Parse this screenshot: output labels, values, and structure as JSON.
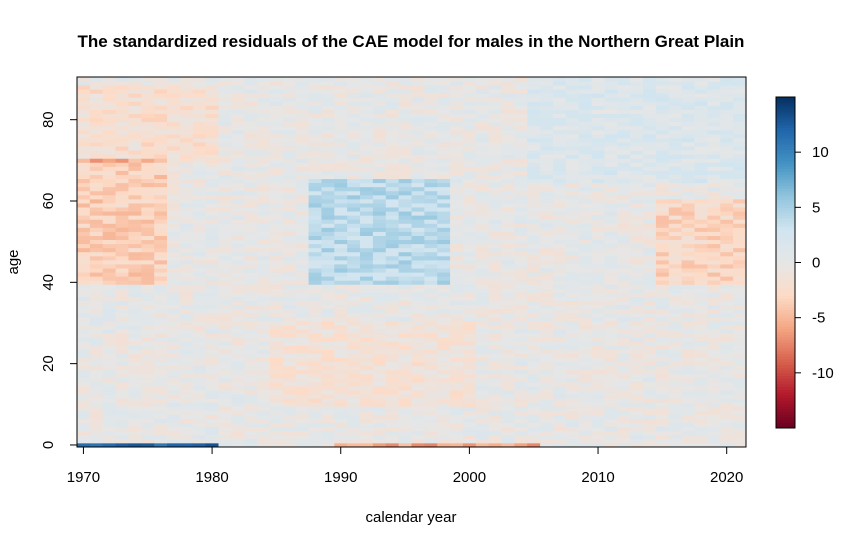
{
  "chart_data": {
    "type": "heatmap",
    "title": "The standardized residuals of the CAE model for males in the Northern Great Plain",
    "xlabel": "calendar year",
    "ylabel": "age",
    "xlim": [
      1969.5,
      2021.5
    ],
    "ylim": [
      -0.5,
      90.5
    ],
    "x_range": [
      1970,
      2021
    ],
    "y_range": [
      0,
      90
    ],
    "x_ticks": [
      1970,
      1980,
      1990,
      2000,
      2010,
      2020
    ],
    "y_ticks": [
      0,
      20,
      40,
      60,
      80
    ],
    "colorbar": {
      "range": [
        -15,
        15
      ],
      "ticks": [
        10,
        5,
        0,
        -5,
        -10
      ],
      "palette": [
        "#67001F",
        "#B2182B",
        "#D6604D",
        "#F4A582",
        "#FDDBC7",
        "#E6E6E6",
        "#D1E5F0",
        "#92C5DE",
        "#4393C3",
        "#2166AC",
        "#053061"
      ]
    },
    "regions": [
      {
        "x": [
          1970,
          1976
        ],
        "y": [
          40,
          70
        ],
        "value": -3.5
      },
      {
        "x": [
          1970,
          1980
        ],
        "y": [
          70,
          88
        ],
        "value": -2.0
      },
      {
        "x": [
          1988,
          1998
        ],
        "y": [
          40,
          65
        ],
        "value": 4.0
      },
      {
        "x": [
          2015,
          2021
        ],
        "y": [
          40,
          60
        ],
        "value": -3.0
      },
      {
        "x": [
          1985,
          2000
        ],
        "y": [
          10,
          30
        ],
        "value": -1.5
      },
      {
        "x": [
          2005,
          2021
        ],
        "y": [
          65,
          90
        ],
        "value": 1.5
      },
      {
        "x": [
          1970,
          1980
        ],
        "y": [
          0,
          0
        ],
        "value": 12.0
      },
      {
        "x": [
          1990,
          2005
        ],
        "y": [
          0,
          0
        ],
        "value": -6.0
      }
    ]
  }
}
